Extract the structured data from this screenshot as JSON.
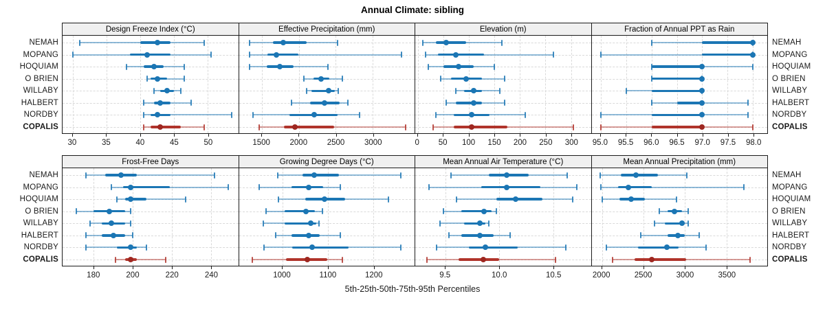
{
  "title": "Annual Climate: sibling",
  "caption": "5th-25th-50th-75th-95th Percentiles",
  "stations": [
    "NEMAH",
    "MOPANG",
    "HOQUIAM",
    "O BRIEN",
    "WILLABY",
    "HALBERT",
    "NORDBY",
    "COPALIS"
  ],
  "highlight_station": "COPALIS",
  "colors": {
    "series": "#1b76b4",
    "highlight": "#b0342b",
    "highlight_dot": "#9e2720",
    "grid": "#d9d9d9",
    "strip_bg": "#f0f0f0",
    "border": "#1a1a1a",
    "text": "#1a1a1a"
  },
  "chart_data": {
    "type": "dot-plot-percentile-trellis",
    "percentiles": [
      5,
      25,
      50,
      75,
      95
    ],
    "legend": "thin line = 5th-95th, thick bar = 25th-75th, dot = median; COPALIS highlighted red",
    "grid": "dashed vertical gridlines at ticks, dashed horizontal row guides",
    "panels": [
      {
        "title": "Design Freeze Index (°C)",
        "grid_position": "row1-col1",
        "domain": [
          28.5,
          54.5
        ],
        "ticks": [
          30,
          35,
          40,
          45,
          50
        ],
        "tick_labels": [
          "30",
          "35",
          "40",
          "45",
          "50"
        ],
        "values": {
          "NEMAH": [
            31,
            40,
            42.5,
            44.5,
            49.5
          ],
          "MOPANG": [
            30,
            38.5,
            41,
            44.5,
            50.5
          ],
          "HOQUIAM": [
            38,
            40.5,
            42,
            43.5,
            46.5
          ],
          "O BRIEN": [
            41,
            41.5,
            42.5,
            44,
            46.5
          ],
          "WILLABY": [
            42,
            43,
            44,
            45,
            46
          ],
          "HALBERT": [
            40.5,
            42,
            43,
            44.5,
            47.5
          ],
          "NORDBY": [
            40.5,
            41.5,
            42.5,
            44.5,
            53.5
          ],
          "COPALIS": [
            40.5,
            41.5,
            43,
            46,
            49.5
          ]
        }
      },
      {
        "title": "Effective Precipitation (mm)",
        "grid_position": "row1-col2",
        "domain": [
          1190,
          3565
        ],
        "ticks": [
          1500,
          2000,
          2500,
          3000
        ],
        "tick_labels": [
          "1500",
          "2000",
          "2500",
          "3000"
        ],
        "values": {
          "NEMAH": [
            1330,
            1650,
            1790,
            2110,
            2520
          ],
          "MOPANG": [
            1330,
            1580,
            1700,
            1990,
            3390
          ],
          "HOQUIAM": [
            1330,
            1570,
            1740,
            1930,
            2390
          ],
          "O BRIEN": [
            2070,
            2200,
            2300,
            2410,
            2590
          ],
          "WILLABY": [
            2110,
            2170,
            2400,
            2490,
            2530
          ],
          "HALBERT": [
            1900,
            2150,
            2350,
            2550,
            2660
          ],
          "NORDBY": [
            1380,
            1870,
            2210,
            2520,
            2820
          ],
          "COPALIS": [
            1460,
            1800,
            1950,
            2480,
            3440
          ]
        }
      },
      {
        "title": "Elevation (m)",
        "grid_position": "row1-col3",
        "domain": [
          -5,
          339
        ],
        "ticks": [
          0,
          50,
          100,
          150,
          200,
          250,
          300
        ],
        "tick_labels": [
          "0",
          "50",
          "100",
          "150",
          "200",
          "250",
          "300"
        ],
        "values": {
          "NEMAH": [
            10,
            35,
            55,
            95,
            165
          ],
          "MOPANG": [
            15,
            40,
            75,
            130,
            265
          ],
          "HOQUIAM": [
            20,
            50,
            80,
            110,
            150
          ],
          "O BRIEN": [
            45,
            65,
            95,
            125,
            170
          ],
          "WILLABY": [
            75,
            90,
            110,
            125,
            160
          ],
          "HALBERT": [
            55,
            75,
            110,
            125,
            170
          ],
          "NORDBY": [
            35,
            70,
            105,
            140,
            210
          ],
          "COPALIS": [
            30,
            70,
            105,
            175,
            305
          ]
        }
      },
      {
        "title": "Fraction of Annual PPT as Rain",
        "grid_position": "row1-col4",
        "domain": [
          94.82,
          98.28
        ],
        "ticks": [
          95.0,
          95.5,
          96.0,
          96.5,
          97.0,
          97.5,
          98.0
        ],
        "tick_labels": [
          "95.0",
          "95.5",
          "96.0",
          "96.5",
          "97.0",
          "97.5",
          "98.0"
        ],
        "values": {
          "NEMAH": [
            96,
            97,
            98,
            98,
            98
          ],
          "MOPANG": [
            95,
            97,
            98,
            98,
            98
          ],
          "HOQUIAM": [
            96,
            96,
            97,
            97,
            98
          ],
          "O BRIEN": [
            96,
            96,
            97,
            97,
            97
          ],
          "WILLABY": [
            95.5,
            96,
            97,
            97,
            97
          ],
          "HALBERT": [
            96,
            96.5,
            97,
            97,
            97.9
          ],
          "NORDBY": [
            95,
            96,
            97,
            97,
            97.9
          ],
          "COPALIS": [
            95,
            96,
            97,
            97,
            98
          ]
        }
      },
      {
        "title": "Frost-Free Days",
        "grid_position": "row2-col1",
        "domain": [
          164,
          254
        ],
        "ticks": [
          180,
          200,
          220,
          240
        ],
        "tick_labels": [
          "180",
          "200",
          "220",
          "240"
        ],
        "values": {
          "NEMAH": [
            176,
            186,
            194,
            202,
            242
          ],
          "MOPANG": [
            189,
            195,
            199,
            219,
            249
          ],
          "HOQUIAM": [
            192,
            196,
            199,
            207,
            227
          ],
          "O BRIEN": [
            171,
            180,
            188,
            196,
            199
          ],
          "WILLABY": [
            178,
            184,
            189,
            196,
            199
          ],
          "HALBERT": [
            176,
            184,
            190,
            196,
            200
          ],
          "NORDBY": [
            176,
            192,
            199,
            202,
            207
          ],
          "COPALIS": [
            191,
            196,
            199,
            202,
            217
          ]
        }
      },
      {
        "title": "Growing Degree Days (°C)",
        "grid_position": "row2-col2",
        "domain": [
          905,
          1290
        ],
        "ticks": [
          1000,
          1100,
          1200
        ],
        "tick_labels": [
          "1000",
          "1100",
          "1200"
        ],
        "values": {
          "NEMAH": [
            990,
            1045,
            1070,
            1125,
            1260
          ],
          "MOPANG": [
            950,
            1020,
            1058,
            1090,
            1128
          ],
          "HOQUIAM": [
            992,
            1050,
            1092,
            1138,
            1232
          ],
          "O BRIEN": [
            965,
            1005,
            1052,
            1072,
            1088
          ],
          "WILLABY": [
            958,
            1005,
            1062,
            1075,
            1080
          ],
          "HALBERT": [
            985,
            1020,
            1058,
            1082,
            1128
          ],
          "NORDBY": [
            960,
            1022,
            1065,
            1145,
            1260
          ],
          "COPALIS": [
            935,
            1008,
            1055,
            1098,
            1132
          ]
        }
      },
      {
        "title": "Mean Annual Air Temperature (°C)",
        "grid_position": "row2-col3",
        "domain": [
          9.22,
          10.85
        ],
        "ticks": [
          9.5,
          10.0,
          10.5
        ],
        "tick_labels": [
          "9.5",
          "10.0",
          "10.5"
        ],
        "values": {
          "NEMAH": [
            9.55,
            9.9,
            10.07,
            10.27,
            10.63
          ],
          "MOPANG": [
            9.35,
            9.83,
            10.07,
            10.38,
            10.72
          ],
          "HOQUIAM": [
            9.6,
            9.97,
            10.15,
            10.4,
            10.68
          ],
          "O BRIEN": [
            9.48,
            9.65,
            9.86,
            9.93,
            9.97
          ],
          "WILLABY": [
            9.45,
            9.67,
            9.82,
            9.87,
            9.9
          ],
          "HALBERT": [
            9.53,
            9.65,
            9.82,
            9.95,
            10.1
          ],
          "NORDBY": [
            9.42,
            9.72,
            9.87,
            10.17,
            10.62
          ],
          "COPALIS": [
            9.33,
            9.62,
            9.85,
            10.0,
            10.52
          ]
        }
      },
      {
        "title": "Mean Annual Precipitation (mm)",
        "grid_position": "row2-col4",
        "domain": [
          1875,
          3990
        ],
        "ticks": [
          2000,
          2500,
          3000,
          3500
        ],
        "tick_labels": [
          "2000",
          "2500",
          "3000",
          "3500"
        ],
        "values": {
          "NEMAH": [
            1980,
            2230,
            2410,
            2670,
            3020
          ],
          "MOPANG": [
            1990,
            2190,
            2320,
            2600,
            3710
          ],
          "HOQUIAM": [
            2000,
            2210,
            2350,
            2520,
            2900
          ],
          "O BRIEN": [
            2690,
            2790,
            2870,
            2960,
            3040
          ],
          "WILLABY": [
            2630,
            2760,
            2960,
            3000,
            3040
          ],
          "HALBERT": [
            2470,
            2790,
            2910,
            3000,
            3170
          ],
          "NORDBY": [
            2050,
            2430,
            2780,
            2920,
            3250
          ],
          "COPALIS": [
            2130,
            2390,
            2600,
            3010,
            3780
          ]
        }
      }
    ]
  }
}
